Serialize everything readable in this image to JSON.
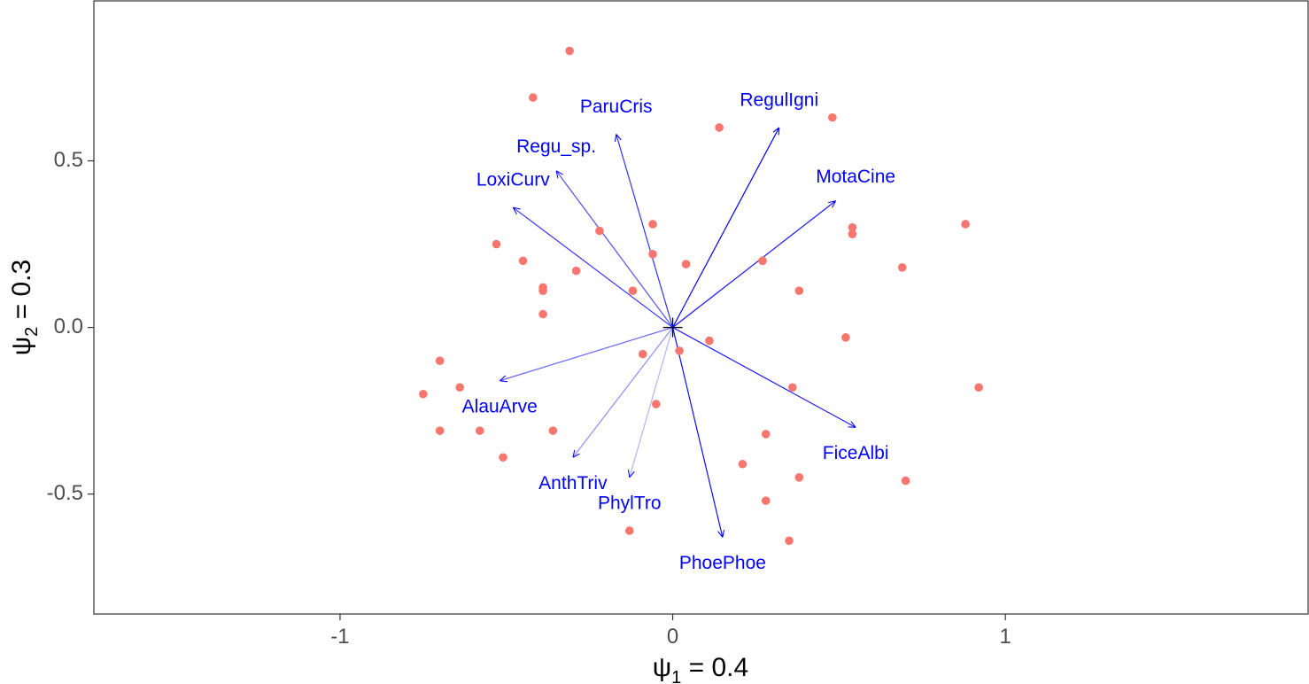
{
  "chart_data": {
    "type": "scatter",
    "subtype": "biplot",
    "title": "",
    "xlabel": {
      "symbol": "ψ",
      "subscript": "1",
      "text": " = 0.4"
    },
    "ylabel": {
      "symbol": "ψ",
      "subscript": "2",
      "text": " = 0.3"
    },
    "xlim": [
      -1.74,
      1.91
    ],
    "ylim": [
      -0.86,
      0.98
    ],
    "x_ticks": [
      {
        "value": -1,
        "label": "-1"
      },
      {
        "value": 0,
        "label": "0"
      },
      {
        "value": 1,
        "label": "1"
      }
    ],
    "y_ticks": [
      {
        "value": 0.5,
        "label": "0.5"
      },
      {
        "value": 0.0,
        "label": "0.0"
      },
      {
        "value": -0.5,
        "label": "-0.5"
      }
    ],
    "grid": false,
    "legend": "none",
    "colors": {
      "points": "#F8766D",
      "arrows": "#0000FF",
      "panel_border": "#333333",
      "origin_marker": "#000000"
    },
    "origin_marker": {
      "x": 0,
      "y": 0,
      "shape": "plus"
    },
    "points": [
      {
        "x": -0.31,
        "y": 0.83
      },
      {
        "x": -0.42,
        "y": 0.69
      },
      {
        "x": 0.14,
        "y": 0.6
      },
      {
        "x": 0.48,
        "y": 0.63
      },
      {
        "x": 0.88,
        "y": 0.31
      },
      {
        "x": 0.54,
        "y": 0.3
      },
      {
        "x": 0.54,
        "y": 0.28
      },
      {
        "x": 0.69,
        "y": 0.18
      },
      {
        "x": 0.27,
        "y": 0.2
      },
      {
        "x": 0.38,
        "y": 0.11
      },
      {
        "x": -0.06,
        "y": 0.31
      },
      {
        "x": -0.22,
        "y": 0.29
      },
      {
        "x": -0.53,
        "y": 0.25
      },
      {
        "x": -0.45,
        "y": 0.2
      },
      {
        "x": -0.06,
        "y": 0.22
      },
      {
        "x": 0.04,
        "y": 0.19
      },
      {
        "x": -0.29,
        "y": 0.17
      },
      {
        "x": -0.39,
        "y": 0.12
      },
      {
        "x": -0.39,
        "y": 0.11
      },
      {
        "x": -0.12,
        "y": 0.11
      },
      {
        "x": -0.39,
        "y": 0.04
      },
      {
        "x": 0.52,
        "y": -0.03
      },
      {
        "x": 0.11,
        "y": -0.04
      },
      {
        "x": 0.02,
        "y": -0.07
      },
      {
        "x": -0.09,
        "y": -0.08
      },
      {
        "x": -0.7,
        "y": -0.1
      },
      {
        "x": 0.92,
        "y": -0.18
      },
      {
        "x": 0.36,
        "y": -0.18
      },
      {
        "x": -0.64,
        "y": -0.18
      },
      {
        "x": -0.75,
        "y": -0.2
      },
      {
        "x": -0.05,
        "y": -0.23
      },
      {
        "x": -0.7,
        "y": -0.31
      },
      {
        "x": -0.58,
        "y": -0.31
      },
      {
        "x": -0.36,
        "y": -0.31
      },
      {
        "x": 0.28,
        "y": -0.32
      },
      {
        "x": -0.51,
        "y": -0.39
      },
      {
        "x": 0.21,
        "y": -0.41
      },
      {
        "x": 0.38,
        "y": -0.45
      },
      {
        "x": 0.7,
        "y": -0.46
      },
      {
        "x": 0.28,
        "y": -0.52
      },
      {
        "x": -0.13,
        "y": -0.61
      },
      {
        "x": 0.35,
        "y": -0.64
      }
    ],
    "arrows": [
      {
        "name": "ParuCris",
        "x": -0.17,
        "y": 0.58,
        "opacity": 0.8,
        "label_x": -0.17,
        "label_y": 0.66
      },
      {
        "name": "RegulIgni",
        "x": 0.32,
        "y": 0.6,
        "opacity": 1.0,
        "label_x": 0.32,
        "label_y": 0.68
      },
      {
        "name": "Regu_sp.",
        "x": -0.35,
        "y": 0.47,
        "opacity": 0.7,
        "label_x": -0.35,
        "label_y": 0.54
      },
      {
        "name": "MotaCine",
        "x": 0.49,
        "y": 0.38,
        "opacity": 0.9,
        "label_x": 0.55,
        "label_y": 0.45
      },
      {
        "name": "LoxiCurv",
        "x": -0.48,
        "y": 0.36,
        "opacity": 0.8,
        "label_x": -0.48,
        "label_y": 0.44
      },
      {
        "name": "AlauArve",
        "x": -0.52,
        "y": -0.16,
        "opacity": 0.6,
        "label_x": -0.52,
        "label_y": -0.24
      },
      {
        "name": "FiceAlbi",
        "x": 0.55,
        "y": -0.3,
        "opacity": 0.9,
        "label_x": 0.55,
        "label_y": -0.38
      },
      {
        "name": "AnthTriv",
        "x": -0.3,
        "y": -0.39,
        "opacity": 0.45,
        "label_x": -0.3,
        "label_y": -0.47
      },
      {
        "name": "PhylTro",
        "x": -0.13,
        "y": -0.45,
        "opacity": 0.3,
        "label_x": -0.13,
        "label_y": -0.53
      },
      {
        "name": "PhoePhoe",
        "x": 0.15,
        "y": -0.63,
        "opacity": 0.95,
        "label_x": 0.15,
        "label_y": -0.71
      }
    ]
  }
}
